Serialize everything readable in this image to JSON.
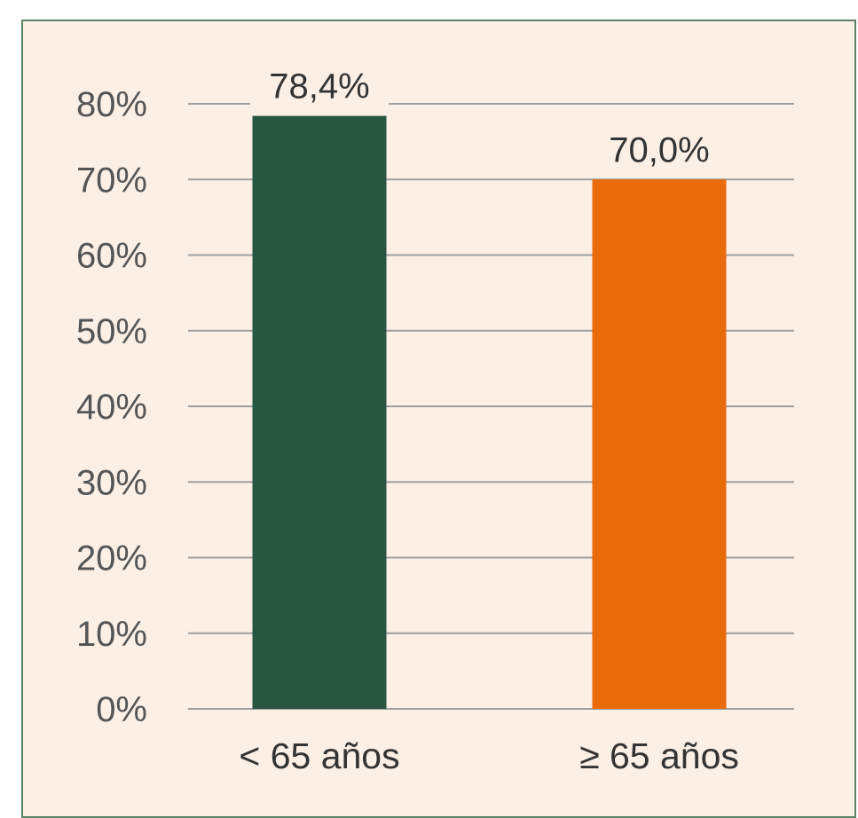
{
  "chart_data": {
    "type": "bar",
    "categories": [
      "< 65 años",
      "≥ 65 años"
    ],
    "values": [
      78.4,
      70.0
    ],
    "value_labels": [
      "78,4%",
      "70,0%"
    ],
    "bar_colors": [
      "#285641",
      "#e96b0b"
    ],
    "y_ticks": [
      0,
      10,
      20,
      30,
      40,
      50,
      60,
      70,
      80
    ],
    "y_tick_labels": [
      "0%",
      "10%",
      "20%",
      "30%",
      "40%",
      "50%",
      "60%",
      "70%",
      "80%"
    ],
    "ylim": [
      0,
      80
    ],
    "grid": true,
    "title": "",
    "xlabel": "",
    "ylabel": ""
  },
  "colors": {
    "background": "#fcefe6",
    "border": "#5e8268",
    "grid": "#9e9e9e"
  }
}
